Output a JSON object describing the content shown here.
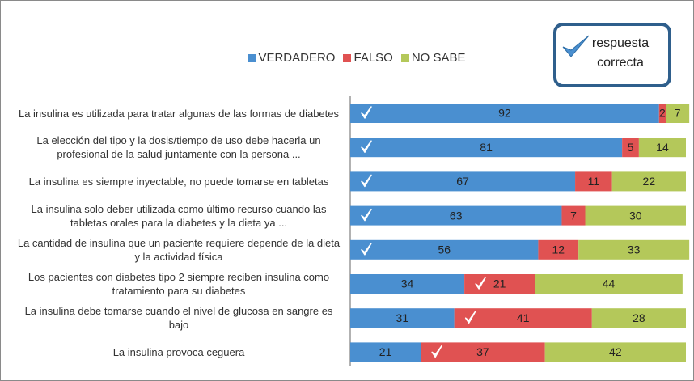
{
  "chart_data": {
    "type": "stacked_barh",
    "categories": [
      "La insulina es utilizada para tratar algunas de las formas de diabetes",
      "La elección del tipo y la dosis/tiempo de uso debe hacerla un profesional de la salud juntamente con la persona ...",
      "La insulina es siempre inyectable, no puede tomarse en tabletas",
      "La insulina solo deber utilizada como último recurso cuando las tabletas orales para la diabetes y la dieta ya ...",
      "La cantidad de insulina que un paciente requiere depende de la dieta y la actividad física",
      "Los pacientes con diabetes tipo 2 siempre reciben insulina como tratamiento para su diabetes",
      "La insulina debe tomarse cuando el nivel de glucosa en sangre es bajo",
      "La insulina provoca ceguera"
    ],
    "series": [
      {
        "name": "VERDADERO",
        "color": "#4a8fd0",
        "values": [
          92,
          81,
          67,
          63,
          56,
          34,
          31,
          21
        ]
      },
      {
        "name": "FALSO",
        "color": "#e05252",
        "values": [
          2,
          5,
          11,
          7,
          12,
          21,
          41,
          37
        ]
      },
      {
        "name": "NO SABE",
        "color": "#b4c85a",
        "values": [
          7,
          14,
          22,
          30,
          33,
          44,
          28,
          42
        ]
      }
    ],
    "correct_series": [
      0,
      0,
      0,
      0,
      0,
      1,
      1,
      1
    ],
    "correct_legend": "respuesta correcta",
    "xlim": [
      0,
      100
    ]
  }
}
